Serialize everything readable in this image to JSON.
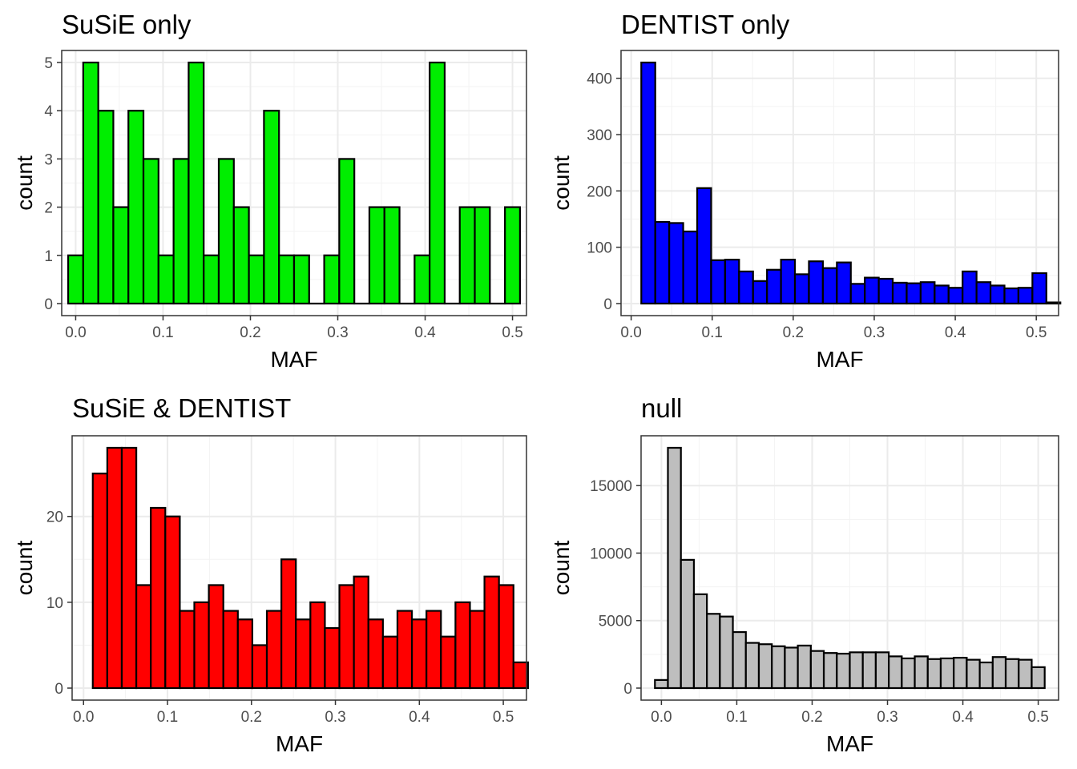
{
  "chart_data": [
    {
      "type": "bar",
      "title": "SuSiE only",
      "xlabel": "MAF",
      "ylabel": "count",
      "fill": "#00ee00",
      "xlim": [
        -0.016,
        0.516
      ],
      "ylim": [
        -0.25,
        5.25
      ],
      "xticks": [
        0.0,
        0.1,
        0.2,
        0.3,
        0.4,
        0.5
      ],
      "xtick_labels": [
        "0.0",
        "0.1",
        "0.2",
        "0.3",
        "0.4",
        "0.5"
      ],
      "yticks": [
        0,
        1,
        2,
        3,
        4,
        5
      ],
      "ytick_labels": [
        "0",
        "1",
        "2",
        "3",
        "4",
        "5"
      ],
      "bin_start": -0.00862,
      "bin_width": 0.01724,
      "values": [
        1,
        5,
        4,
        2,
        4,
        3,
        1,
        3,
        5,
        1,
        3,
        2,
        1,
        4,
        1,
        1,
        0,
        1,
        3,
        0,
        2,
        2,
        0,
        1,
        5,
        0,
        2,
        2,
        0,
        2
      ]
    },
    {
      "type": "bar",
      "title": "DENTIST only",
      "xlabel": "MAF",
      "ylabel": "count",
      "fill": "#0000ff",
      "xlim": [
        -0.0125,
        0.5275
      ],
      "ylim": [
        -21.4,
        449.4
      ],
      "xticks": [
        0.0,
        0.1,
        0.2,
        0.3,
        0.4,
        0.5
      ],
      "xtick_labels": [
        "0.0",
        "0.1",
        "0.2",
        "0.3",
        "0.4",
        "0.5"
      ],
      "yticks": [
        0,
        100,
        200,
        300,
        400
      ],
      "ytick_labels": [
        "0",
        "100",
        "200",
        "300",
        "400"
      ],
      "bin_start": 0.0125,
      "bin_width": 0.01724,
      "values": [
        428,
        145,
        143,
        128,
        205,
        77,
        78,
        57,
        40,
        60,
        78,
        52,
        75,
        63,
        73,
        35,
        46,
        44,
        37,
        36,
        38,
        32,
        28,
        57,
        38,
        32,
        27,
        28,
        54,
        2
      ]
    },
    {
      "type": "bar",
      "title": "SuSiE & DENTIST",
      "xlabel": "MAF",
      "ylabel": "count",
      "fill": "#ff0000",
      "xlim": [
        -0.0136,
        0.5276
      ],
      "ylim": [
        -1.4,
        29.4
      ],
      "xticks": [
        0.0,
        0.1,
        0.2,
        0.3,
        0.4,
        0.5
      ],
      "xtick_labels": [
        "0.0",
        "0.1",
        "0.2",
        "0.3",
        "0.4",
        "0.5"
      ],
      "yticks": [
        0,
        10,
        20
      ],
      "ytick_labels": [
        "0",
        "10",
        "20"
      ],
      "bin_start": 0.011,
      "bin_width": 0.01728,
      "values": [
        25,
        28,
        28,
        12,
        21,
        20,
        9,
        10,
        12,
        9,
        8,
        5,
        9,
        15,
        8,
        10,
        7,
        12,
        13,
        8,
        6,
        9,
        8,
        9,
        6,
        10,
        9,
        13,
        12,
        3
      ]
    },
    {
      "type": "bar",
      "title": "null",
      "xlabel": "MAF",
      "ylabel": "count",
      "fill": "#bebebe",
      "xlim": [
        -0.027,
        0.527
      ],
      "ylim": [
        -890,
        18690
      ],
      "xticks": [
        0.0,
        0.1,
        0.2,
        0.3,
        0.4,
        0.5
      ],
      "xtick_labels": [
        "0.0",
        "0.1",
        "0.2",
        "0.3",
        "0.4",
        "0.5"
      ],
      "yticks": [
        0,
        5000,
        10000,
        15000
      ],
      "ytick_labels": [
        "0",
        "5000",
        "10000",
        "15000"
      ],
      "bin_start": -0.00862,
      "bin_width": 0.01724,
      "values": [
        600,
        17800,
        9500,
        6950,
        5500,
        5300,
        4150,
        3350,
        3250,
        3100,
        3000,
        3150,
        2750,
        2600,
        2550,
        2650,
        2650,
        2650,
        2350,
        2200,
        2350,
        2150,
        2200,
        2250,
        2100,
        1900,
        2300,
        2150,
        2100,
        1550
      ]
    }
  ]
}
